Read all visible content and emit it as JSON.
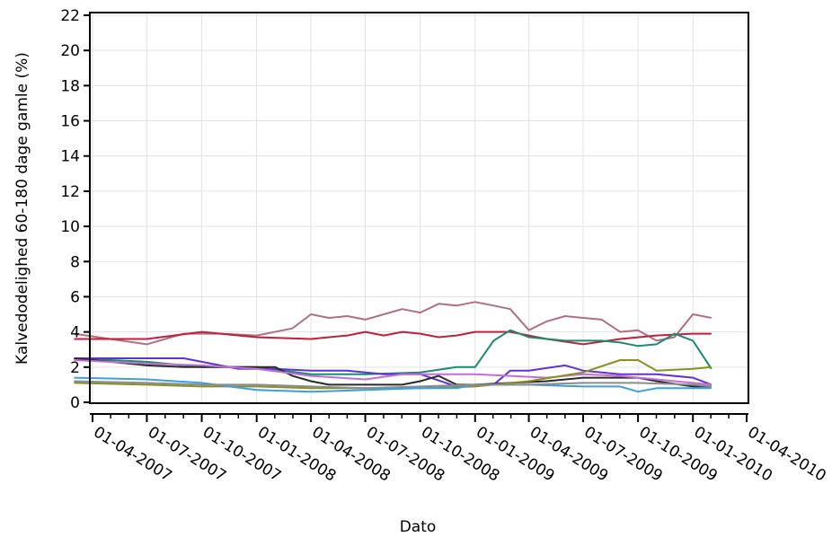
{
  "chart_data": {
    "type": "line",
    "title": "",
    "xlabel": "Dato",
    "ylabel": "Kalvedodelighed 60-180 dage gamle (%)",
    "ylim": [
      0,
      22
    ],
    "yticks": [
      0,
      2,
      4,
      6,
      8,
      10,
      12,
      14,
      16,
      18,
      20,
      22
    ],
    "xlim": [
      "2007-02-01",
      "2010-04-01"
    ],
    "xticks": [
      "2007-04-01",
      "2007-07-01",
      "2007-10-01",
      "2008-01-01",
      "2008-04-01",
      "2008-07-01",
      "2008-10-01",
      "2009-01-01",
      "2009-04-01",
      "2009-07-01",
      "2009-10-01",
      "2010-01-01",
      "2010-04-01"
    ],
    "xtick_labels": [
      "01-04-2007",
      "01-07-2007",
      "01-10-2007",
      "01-01-2008",
      "01-04-2008",
      "01-07-2008",
      "01-10-2008",
      "01-01-2009",
      "01-04-2009",
      "01-07-2009",
      "01-10-2009",
      "01-01-2010",
      "01-04-2010"
    ],
    "grid": true,
    "legend": "none",
    "series": [
      {
        "color": "#b07080",
        "x": [
          "2007-03-01",
          "2007-05-01",
          "2007-07-01",
          "2007-09-01",
          "2007-11-01",
          "2008-01-01",
          "2008-03-01",
          "2008-04-01",
          "2008-05-01",
          "2008-06-01",
          "2008-07-01",
          "2008-08-01",
          "2008-09-01",
          "2008-10-01",
          "2008-11-01",
          "2008-12-01",
          "2009-01-01",
          "2009-02-01",
          "2009-03-01",
          "2009-04-01",
          "2009-05-01",
          "2009-06-01",
          "2009-07-01",
          "2009-08-01",
          "2009-09-01",
          "2009-10-01",
          "2009-11-01",
          "2009-12-01",
          "2010-01-01",
          "2010-02-01"
        ],
        "y": [
          3.9,
          3.6,
          3.3,
          3.9,
          3.9,
          3.8,
          4.2,
          5.0,
          4.8,
          4.9,
          4.7,
          5.0,
          5.3,
          5.1,
          5.6,
          5.5,
          5.7,
          5.5,
          5.3,
          4.1,
          4.6,
          4.9,
          4.8,
          4.7,
          4.0,
          4.1,
          3.5,
          3.7,
          5.0,
          4.8
        ]
      },
      {
        "color": "#c0203a",
        "x": [
          "2007-03-01",
          "2007-07-01",
          "2007-10-01",
          "2008-01-01",
          "2008-04-01",
          "2008-06-01",
          "2008-07-01",
          "2008-08-01",
          "2008-09-01",
          "2008-10-01",
          "2008-11-01",
          "2008-12-01",
          "2009-01-01",
          "2009-02-01",
          "2009-03-01",
          "2009-05-01",
          "2009-07-01",
          "2009-09-01",
          "2009-11-01",
          "2010-01-01",
          "2010-02-01"
        ],
        "y": [
          3.6,
          3.6,
          4.0,
          3.7,
          3.6,
          3.8,
          4.0,
          3.8,
          4.0,
          3.9,
          3.7,
          3.8,
          4.0,
          4.0,
          4.0,
          3.6,
          3.3,
          3.6,
          3.8,
          3.9,
          3.9
        ]
      },
      {
        "color": "#1a8a70",
        "x": [
          "2007-03-01",
          "2007-07-01",
          "2007-10-01",
          "2008-01-01",
          "2008-04-01",
          "2008-07-01",
          "2008-10-01",
          "2008-12-01",
          "2009-01-01",
          "2009-02-01",
          "2009-03-01",
          "2009-04-01",
          "2009-06-01",
          "2009-08-01",
          "2009-09-01",
          "2009-10-01",
          "2009-11-01",
          "2009-12-01",
          "2010-01-01",
          "2010-02-01"
        ],
        "y": [
          2.5,
          2.3,
          2.0,
          2.0,
          1.6,
          1.6,
          1.7,
          2.0,
          2.0,
          3.5,
          4.1,
          3.7,
          3.5,
          3.5,
          3.4,
          3.2,
          3.3,
          3.9,
          3.5,
          1.9
        ]
      },
      {
        "color": "#6030d8",
        "x": [
          "2007-03-01",
          "2007-06-01",
          "2007-09-01",
          "2007-10-01",
          "2007-12-01",
          "2008-02-01",
          "2008-04-01",
          "2008-06-01",
          "2008-08-01",
          "2008-10-01",
          "2008-12-01",
          "2009-01-01",
          "2009-02-01",
          "2009-03-01",
          "2009-04-01",
          "2009-06-01",
          "2009-07-01",
          "2009-09-01",
          "2009-11-01",
          "2010-01-01",
          "2010-02-01"
        ],
        "y": [
          2.5,
          2.5,
          2.5,
          2.3,
          1.9,
          1.9,
          1.8,
          1.8,
          1.6,
          1.6,
          0.9,
          1.0,
          1.0,
          1.8,
          1.8,
          2.1,
          1.8,
          1.6,
          1.6,
          1.4,
          1.0
        ]
      },
      {
        "color": "#2a2a2a",
        "x": [
          "2007-03-01",
          "2007-05-01",
          "2007-07-01",
          "2007-09-01",
          "2007-11-01",
          "2008-01-01",
          "2008-02-01",
          "2008-03-01",
          "2008-04-01",
          "2008-05-01",
          "2008-06-01",
          "2008-08-01",
          "2008-09-01",
          "2008-10-01",
          "2008-11-01",
          "2008-12-01",
          "2009-01-01",
          "2009-03-01",
          "2009-05-01",
          "2009-07-01",
          "2009-09-01",
          "2009-10-01",
          "2009-11-01",
          "2010-01-01",
          "2010-02-01"
        ],
        "y": [
          2.5,
          2.3,
          2.1,
          2.0,
          2.0,
          2.0,
          2.0,
          1.5,
          1.2,
          1.0,
          1.0,
          1.0,
          1.0,
          1.2,
          1.5,
          1.0,
          1.0,
          1.1,
          1.2,
          1.4,
          1.4,
          1.4,
          1.2,
          0.9,
          0.9
        ]
      },
      {
        "color": "#c070d0",
        "x": [
          "2007-03-01",
          "2007-07-01",
          "2007-10-01",
          "2008-01-01",
          "2008-04-01",
          "2008-07-01",
          "2008-09-01",
          "2008-10-01",
          "2008-11-01",
          "2009-01-01",
          "2009-03-01",
          "2009-05-01",
          "2009-07-01",
          "2009-09-01",
          "2009-11-01",
          "2010-01-01",
          "2010-02-01"
        ],
        "y": [
          2.4,
          2.2,
          2.1,
          1.9,
          1.5,
          1.3,
          1.6,
          1.6,
          1.6,
          1.6,
          1.5,
          1.4,
          1.6,
          1.5,
          1.3,
          1.1,
          1.0
        ]
      },
      {
        "color": "#8a9020",
        "x": [
          "2007-03-01",
          "2007-07-01",
          "2007-10-01",
          "2008-01-01",
          "2008-04-01",
          "2008-07-01",
          "2008-10-01",
          "2009-01-01",
          "2009-04-01",
          "2009-07-01",
          "2009-09-01",
          "2009-10-01",
          "2009-11-01",
          "2010-01-01",
          "2010-02-01"
        ],
        "y": [
          1.1,
          1.0,
          0.9,
          0.9,
          0.8,
          0.8,
          0.8,
          0.9,
          1.2,
          1.7,
          2.4,
          2.4,
          1.8,
          1.9,
          2.0
        ]
      },
      {
        "color": "#3aa0e0",
        "x": [
          "2007-03-01",
          "2007-07-01",
          "2007-10-01",
          "2008-01-01",
          "2008-04-01",
          "2008-07-01",
          "2008-10-01",
          "2008-12-01",
          "2009-01-01",
          "2009-04-01",
          "2009-07-01",
          "2009-09-01",
          "2009-10-01",
          "2009-11-01",
          "2010-01-01",
          "2010-02-01"
        ],
        "y": [
          1.4,
          1.3,
          1.1,
          0.7,
          0.6,
          0.7,
          0.8,
          0.8,
          1.0,
          1.0,
          0.9,
          0.9,
          0.6,
          0.8,
          0.8,
          0.8
        ]
      },
      {
        "color": "#8c8c8c",
        "x": [
          "2007-03-01",
          "2007-07-01",
          "2007-10-01",
          "2008-01-01",
          "2008-04-01",
          "2008-07-01",
          "2008-10-01",
          "2009-01-01",
          "2009-04-01",
          "2009-07-01",
          "2009-10-01",
          "2010-01-01",
          "2010-02-01"
        ],
        "y": [
          1.2,
          1.1,
          1.0,
          1.0,
          0.9,
          0.8,
          0.9,
          1.0,
          1.0,
          1.1,
          1.1,
          1.0,
          0.9
        ]
      }
    ]
  }
}
